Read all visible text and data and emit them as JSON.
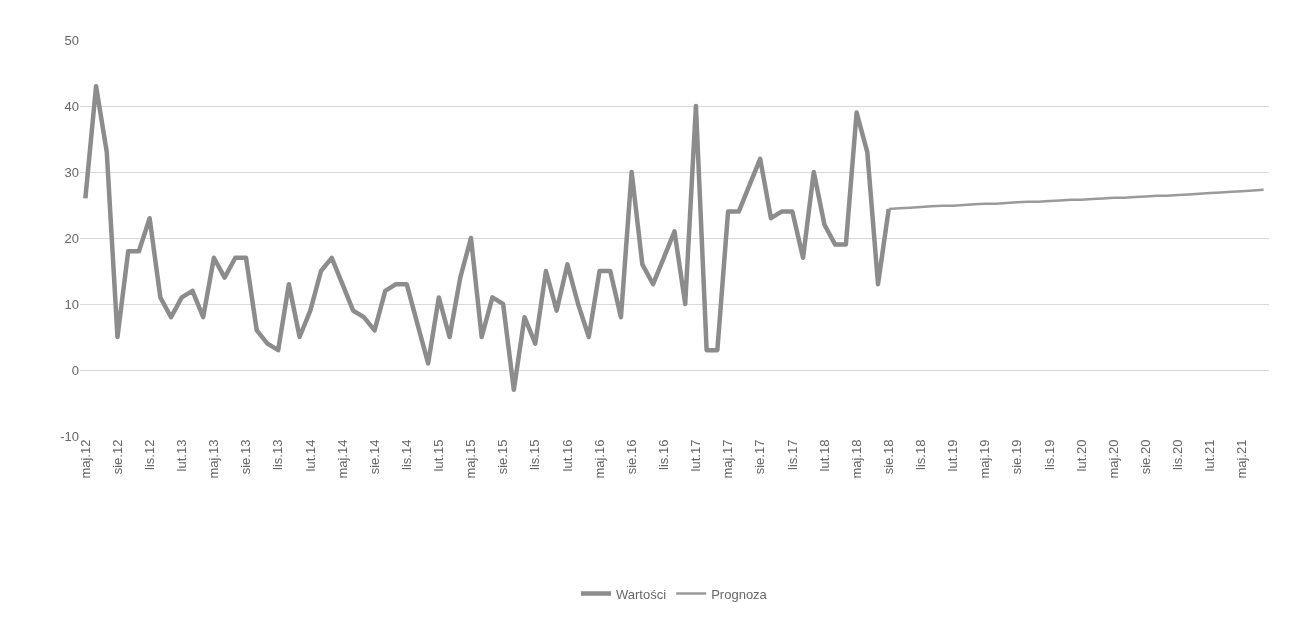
{
  "chart_data": {
    "type": "line",
    "categories": [
      "maj.12",
      null,
      null,
      "sie.12",
      null,
      null,
      "lis.12",
      null,
      null,
      "lut.13",
      null,
      null,
      "maj.13",
      null,
      null,
      "sie.13",
      null,
      null,
      "lis.13",
      null,
      null,
      "lut.14",
      null,
      null,
      "maj.14",
      null,
      null,
      "sie.14",
      null,
      null,
      "lis.14",
      null,
      null,
      "lut.15",
      null,
      null,
      "maj.15",
      null,
      null,
      "sie.15",
      null,
      null,
      "lis.15",
      null,
      null,
      "lut.16",
      null,
      null,
      "maj.16",
      null,
      null,
      "sie.16",
      null,
      null,
      "lis.16",
      null,
      null,
      "lut.17",
      null,
      null,
      "maj.17",
      null,
      null,
      "sie.17",
      null,
      null,
      "lis.17",
      null,
      null,
      "lut.18",
      null,
      null,
      "maj.18",
      null,
      null,
      "sie.18",
      null,
      null,
      "lis.18",
      null,
      null,
      "lut.19",
      null,
      null,
      "maj.19",
      null,
      null,
      "sie.19",
      null,
      null,
      "lis.19",
      null,
      null,
      "lut.20",
      null,
      null,
      "maj.20",
      null,
      null,
      "sie.20",
      null,
      null,
      "lis.20",
      null,
      null,
      "lut.21",
      null,
      null,
      "maj.21",
      null,
      null
    ],
    "series": [
      {
        "name": "Wartości",
        "color": "#8c8c8c",
        "values": [
          26,
          43,
          33,
          5,
          18,
          18,
          23,
          11,
          8,
          11,
          12,
          8,
          17,
          14,
          17,
          17,
          6,
          4,
          3,
          13,
          5,
          9,
          15,
          17,
          13,
          9,
          8,
          6,
          12,
          13,
          13,
          7,
          1,
          11,
          5,
          14,
          20,
          5,
          11,
          10,
          -3,
          8,
          4,
          15,
          9,
          16,
          10,
          5,
          15,
          15,
          8,
          30,
          16,
          13,
          17,
          21,
          10,
          40,
          3,
          3,
          24,
          24,
          28,
          32,
          23,
          24,
          24,
          17,
          30,
          22,
          19,
          19,
          39,
          33,
          13,
          24.4,
          null,
          null,
          null,
          null,
          null,
          null,
          null,
          null,
          null,
          null,
          null,
          null,
          null,
          null,
          null,
          null,
          null,
          null,
          null,
          null,
          null,
          null,
          null,
          null,
          null,
          null,
          null,
          null,
          null,
          null,
          null,
          null,
          null,
          null,
          null
        ]
      },
      {
        "name": "Prognoza",
        "color": "#9a9a9a",
        "values": [
          null,
          null,
          null,
          null,
          null,
          null,
          null,
          null,
          null,
          null,
          null,
          null,
          null,
          null,
          null,
          null,
          null,
          null,
          null,
          null,
          null,
          null,
          null,
          null,
          null,
          null,
          null,
          null,
          null,
          null,
          null,
          null,
          null,
          null,
          null,
          null,
          null,
          null,
          null,
          null,
          null,
          null,
          null,
          null,
          null,
          null,
          null,
          null,
          null,
          null,
          null,
          null,
          null,
          null,
          null,
          null,
          null,
          null,
          null,
          null,
          null,
          null,
          null,
          null,
          null,
          null,
          null,
          null,
          null,
          null,
          null,
          null,
          null,
          null,
          null,
          24.4,
          24.5,
          24.6,
          24.7,
          24.8,
          24.9,
          24.9,
          25.0,
          25.1,
          25.2,
          25.2,
          25.3,
          25.4,
          25.5,
          25.5,
          25.6,
          25.7,
          25.8,
          25.8,
          25.9,
          26.0,
          26.1,
          26.1,
          26.2,
          26.3,
          26.4,
          26.4,
          26.5,
          26.6,
          26.7,
          26.8,
          26.9,
          27.0,
          27.1,
          27.2,
          27.3
        ]
      }
    ],
    "ylim": [
      -10,
      50
    ],
    "yticks": [
      -10,
      0,
      10,
      20,
      30,
      40,
      50
    ],
    "grid": "y",
    "legend": "bottom",
    "marker": "none",
    "line_style": "solid"
  }
}
